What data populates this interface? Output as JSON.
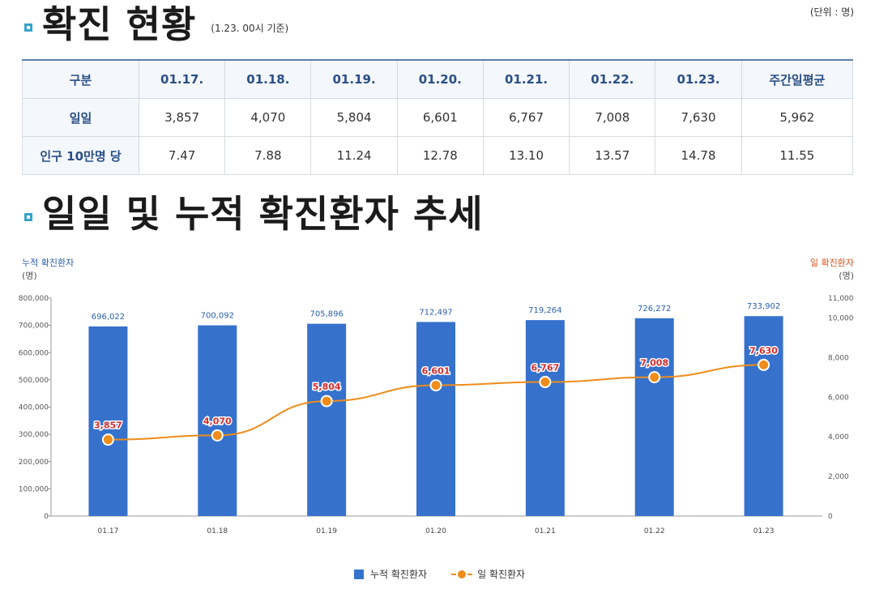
{
  "section1": {
    "title": "확진 현황",
    "subtitle": "(1.23. 00시 기준)",
    "unit": "(단위 : 명)"
  },
  "table": {
    "headers": [
      "구분",
      "01.17.",
      "01.18.",
      "01.19.",
      "01.20.",
      "01.21.",
      "01.22.",
      "01.23.",
      "주간일평균"
    ],
    "rows": [
      {
        "label": "일일",
        "values": [
          "3,857",
          "4,070",
          "5,804",
          "6,601",
          "6,767",
          "7,008",
          "7,630",
          "5,962"
        ]
      },
      {
        "label": "인구 10만명 당",
        "values": [
          "7.47",
          "7.88",
          "11.24",
          "12.78",
          "13.10",
          "13.57",
          "14.78",
          "11.55"
        ]
      }
    ]
  },
  "section2": {
    "title": "일일 및 누적 확진환자 추세"
  },
  "chart_data": {
    "type": "bar+line",
    "categories": [
      "01.17",
      "01.18",
      "01.19",
      "01.20",
      "01.21",
      "01.22",
      "01.23"
    ],
    "series": [
      {
        "name": "누적 확진환자",
        "type": "bar",
        "axis": "left",
        "values": [
          696022,
          700092,
          705896,
          712497,
          719264,
          726272,
          733902
        ],
        "labels": [
          "696,022",
          "700,092",
          "705,896",
          "712,497",
          "719,264",
          "726,272",
          "733,902"
        ],
        "color": "#3672cc"
      },
      {
        "name": "일 확진환자",
        "type": "line",
        "axis": "right",
        "values": [
          3857,
          4070,
          5804,
          6601,
          6767,
          7008,
          7630
        ],
        "labels": [
          "3,857",
          "4,070",
          "5,804",
          "6,601",
          "6,767",
          "7,008",
          "7,630"
        ],
        "color": "#ef8c1a"
      }
    ],
    "left_axis": {
      "title": "누적 확진환자",
      "unit": "(명)",
      "ylim": [
        0,
        800000
      ],
      "ticks": [
        0,
        100000,
        200000,
        300000,
        400000,
        500000,
        600000,
        700000,
        800000
      ],
      "tick_labels": [
        "0",
        "100,000",
        "200,000",
        "300,000",
        "400,000",
        "500,000",
        "600,000",
        "700,000",
        "800,000"
      ]
    },
    "right_axis": {
      "title": "일 확진환자",
      "unit": "(명)",
      "ylim": [
        0,
        11000
      ],
      "ticks": [
        0,
        2000,
        4000,
        6000,
        8000,
        10000,
        11000
      ],
      "tick_labels": [
        "0",
        "2,000",
        "4,000",
        "6,000",
        "8,000",
        "10,000",
        "11,000"
      ]
    },
    "legend": [
      "누적 확진환자",
      "일 확진환자"
    ],
    "legend_position": "bottom"
  }
}
